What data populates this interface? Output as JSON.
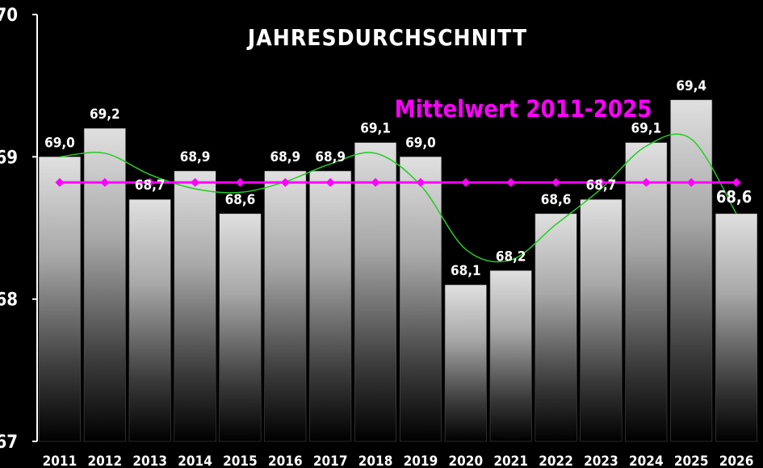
{
  "chart_data": {
    "type": "bar",
    "title": "JAHRESDURCHSCHNITT",
    "categories": [
      "2011",
      "2012",
      "2013",
      "2014",
      "2015",
      "2016",
      "2017",
      "2018",
      "2019",
      "2020",
      "2021",
      "2022",
      "2023",
      "2024",
      "2025",
      "2026"
    ],
    "values": [
      69.0,
      69.2,
      68.7,
      68.9,
      68.6,
      68.9,
      68.9,
      69.1,
      69.0,
      68.1,
      68.2,
      68.6,
      68.7,
      69.1,
      69.4,
      68.6
    ],
    "value_labels": [
      "69,0",
      "69,2",
      "68,7",
      "68,9",
      "68,6",
      "68,9",
      "68,9",
      "69,1",
      "69,0",
      "68,1",
      "68,2",
      "68,6",
      "68,7",
      "69,1",
      "69,4",
      "68,6"
    ],
    "highlight_index": 15,
    "ylim": [
      67,
      70
    ],
    "yticks": [
      "67",
      "68",
      "69",
      "70"
    ],
    "ytick_values": [
      67,
      68,
      69,
      70
    ],
    "mean_line": {
      "label": "Mittelwert 2011-2025",
      "value": 68.82,
      "color": "#ff00ff"
    },
    "trend_line": {
      "color": "#22cc22",
      "type": "smoothed"
    },
    "colors": {
      "background": "#000000",
      "bar_top": "#dcdcdc",
      "bar_bottom": "#000000",
      "highlight_label": "#33ff33",
      "text": "#ffffff"
    },
    "grid": false,
    "legend": "none"
  }
}
